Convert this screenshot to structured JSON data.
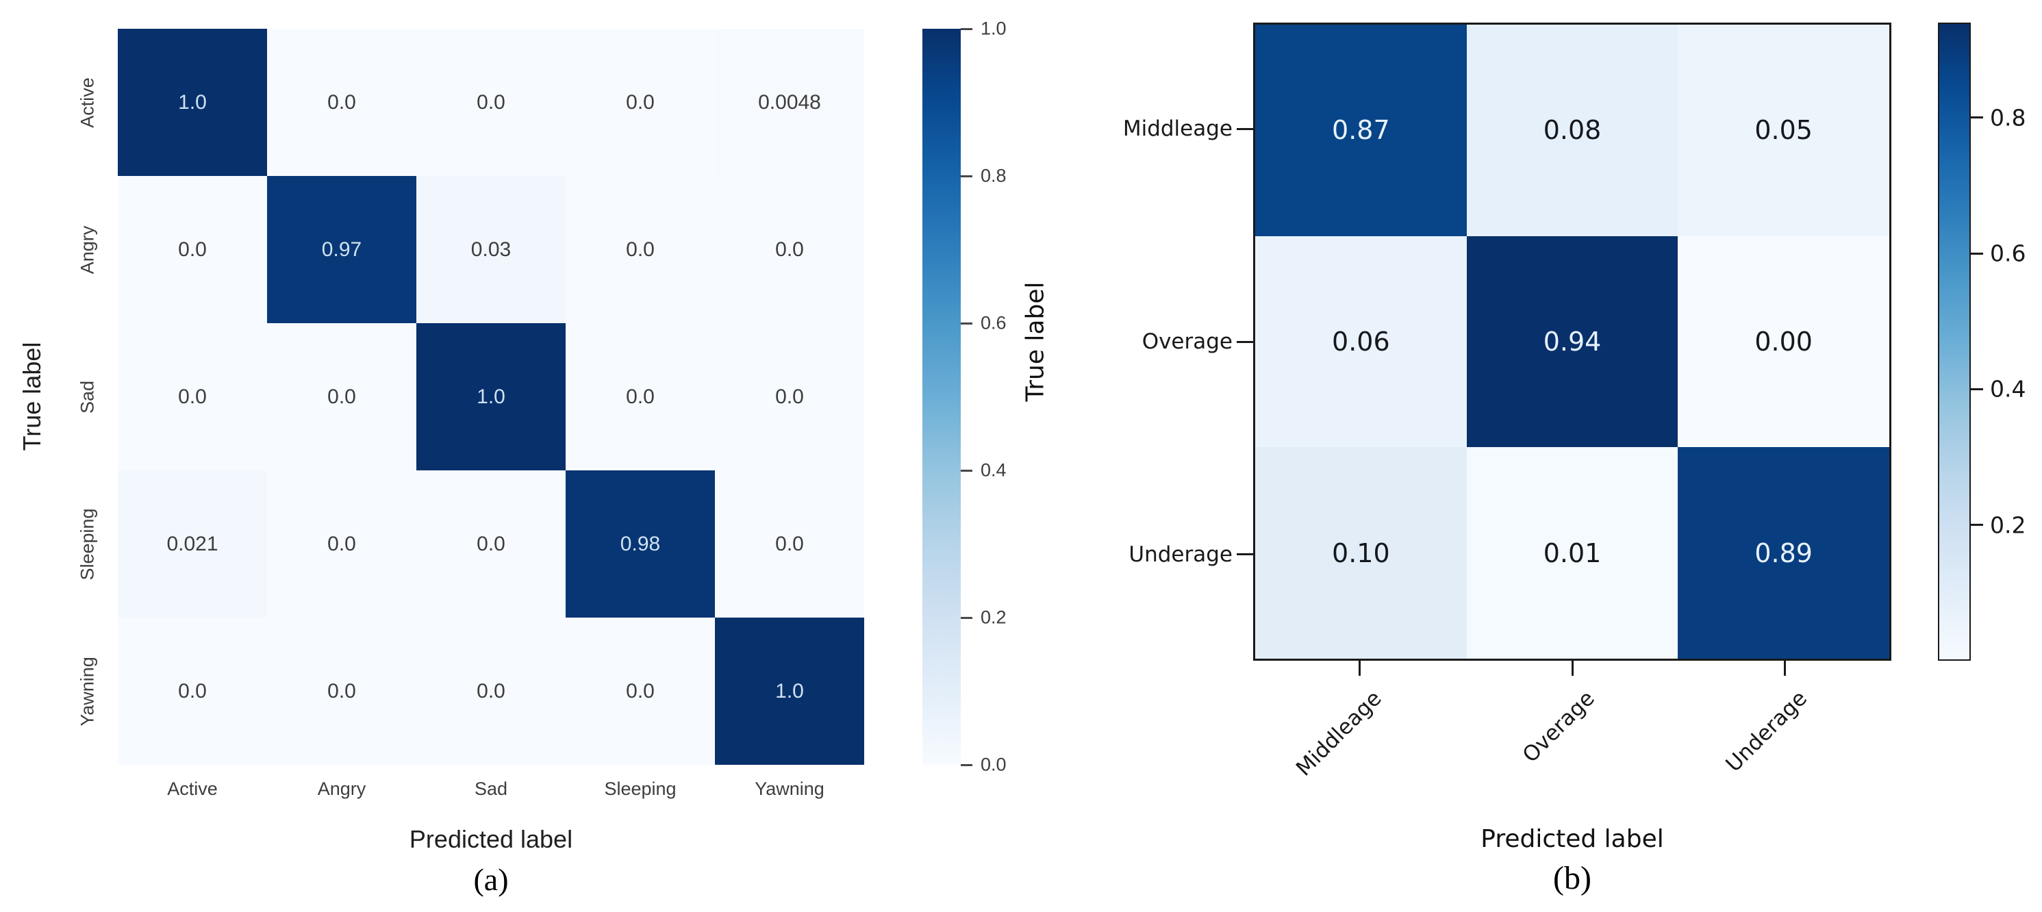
{
  "chart_data": [
    {
      "type": "heatmap",
      "id": "a",
      "caption": "(a)",
      "xlabel": "Predicted label",
      "ylabel": "True label",
      "categories": [
        "Active",
        "Angry",
        "Sad",
        "Sleeping",
        "Yawning"
      ],
      "values": [
        [
          1.0,
          0.0,
          0.0,
          0.0,
          0.0048
        ],
        [
          0.0,
          0.97,
          0.03,
          0.0,
          0.0
        ],
        [
          0.0,
          0.0,
          1.0,
          0.0,
          0.0
        ],
        [
          0.021,
          0.0,
          0.0,
          0.98,
          0.0
        ],
        [
          0.0,
          0.0,
          0.0,
          0.0,
          1.0
        ]
      ],
      "cell_labels": [
        [
          "1.0",
          "0.0",
          "0.0",
          "0.0",
          "0.0048"
        ],
        [
          "0.0",
          "0.97",
          "0.03",
          "0.0",
          "0.0"
        ],
        [
          "0.0",
          "0.0",
          "1.0",
          "0.0",
          "0.0"
        ],
        [
          "0.021",
          "0.0",
          "0.0",
          "0.98",
          "0.0"
        ],
        [
          "0.0",
          "0.0",
          "0.0",
          "0.0",
          "1.0"
        ]
      ],
      "vmin": 0.0,
      "vmax": 1.0,
      "colormap": "Blues",
      "colorbar_ticks": [
        "1.0",
        "0.8",
        "0.6",
        "0.4",
        "0.2",
        "0.0"
      ],
      "colorbar_tick_values": [
        1.0,
        0.8,
        0.6,
        0.4,
        0.2,
        0.0
      ],
      "legend_position": "right",
      "grid": false
    },
    {
      "type": "heatmap",
      "id": "b",
      "caption": "(b)",
      "xlabel": "Predicted label",
      "ylabel": "True label",
      "categories": [
        "Middleage",
        "Overage",
        "Underage"
      ],
      "values": [
        [
          0.87,
          0.08,
          0.05
        ],
        [
          0.06,
          0.94,
          0.0
        ],
        [
          0.1,
          0.01,
          0.89
        ]
      ],
      "cell_labels": [
        [
          "0.87",
          "0.08",
          "0.05"
        ],
        [
          "0.06",
          "0.94",
          "0.00"
        ],
        [
          "0.10",
          "0.01",
          "0.89"
        ]
      ],
      "vmin": 0.0,
      "vmax": 0.94,
      "colormap": "Blues",
      "colorbar_ticks": [
        "0.8",
        "0.6",
        "0.4",
        "0.2"
      ],
      "colorbar_tick_values": [
        0.8,
        0.6,
        0.4,
        0.2
      ],
      "legend_position": "right",
      "grid": false
    }
  ],
  "colors": {
    "cmap_high": "#08306b",
    "cmap_low": "#f7fbff",
    "frame_b": "#1a1a1a",
    "axis_text_a": "#3d3d3d",
    "axis_text_b": "#17181a",
    "light_cell_text_a": "#cfe2f3",
    "light_cell_text_b": "#e9f2fb",
    "dark_cell_text_a": "#3d3d3d",
    "dark_cell_text_b": "#15181c"
  }
}
